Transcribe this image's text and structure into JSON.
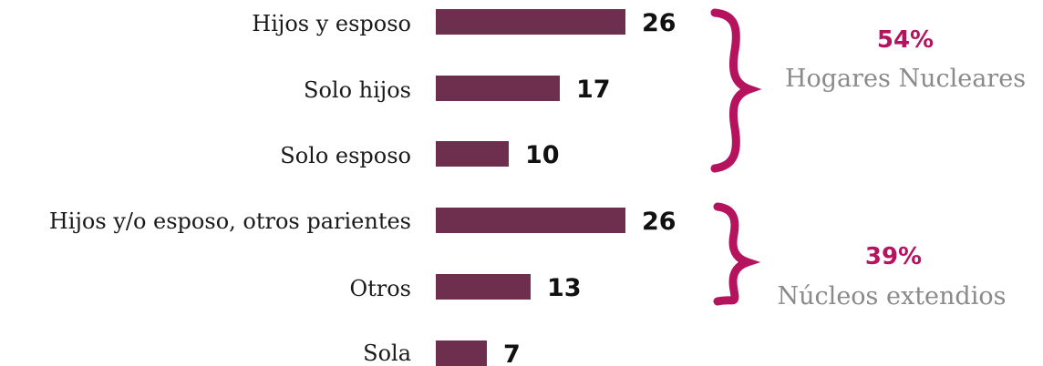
{
  "colors": {
    "bar": "#6e2f4f",
    "accent": "#b5135e",
    "group_label": "#8a8a8a",
    "text": "#1a1a1a"
  },
  "chart_data": {
    "type": "bar",
    "orientation": "horizontal",
    "categories": [
      "Hijos y esposo",
      "Solo hijos",
      "Solo esposo",
      "Hijos y/o esposo, otros parientes",
      "Otros",
      "Sola"
    ],
    "values": [
      26,
      17,
      10,
      26,
      13,
      7
    ],
    "value_labels": [
      "26",
      "17",
      "10",
      "26",
      "13",
      "7"
    ],
    "groups": [
      {
        "percent": "54%",
        "label": "Hogares Nucleares",
        "categories": [
          "Hijos y esposo",
          "Solo hijos",
          "Solo esposo"
        ]
      },
      {
        "percent": "39%",
        "label": "Núcleos extendios",
        "categories": [
          "Hijos y/o esposo, otros parientes",
          "Otros"
        ]
      }
    ],
    "grid": false,
    "legend": "none"
  }
}
